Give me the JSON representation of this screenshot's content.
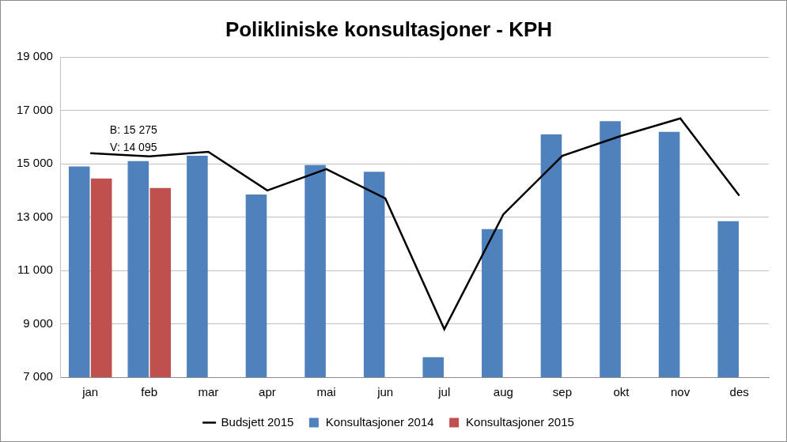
{
  "chart_data": {
    "type": "bar",
    "title": "Polikliniske konsultasjoner - KPH",
    "categories": [
      "jan",
      "feb",
      "mar",
      "apr",
      "mai",
      "jun",
      "jul",
      "aug",
      "sep",
      "okt",
      "nov",
      "des"
    ],
    "series": [
      {
        "name": "Konsultasjoner 2014",
        "type": "bar",
        "color": "#4f81bd",
        "values": [
          14900,
          15100,
          15300,
          13850,
          14950,
          14700,
          7750,
          12550,
          16100,
          16600,
          16200,
          12850
        ]
      },
      {
        "name": "Konsultasjoner 2015",
        "type": "bar",
        "color": "#c0504d",
        "values": [
          14450,
          14095,
          null,
          null,
          null,
          null,
          null,
          null,
          null,
          null,
          null,
          null
        ]
      },
      {
        "name": "Budsjett 2015",
        "type": "line",
        "color": "#000000",
        "marker": "none",
        "line_style": "solid",
        "values": [
          15400,
          15275,
          15450,
          14000,
          14800,
          13700,
          8800,
          13100,
          15300,
          16050,
          16700,
          13800
        ]
      }
    ],
    "annotations": [
      "B: 15 275",
      "V: 14 095"
    ],
    "ylim": [
      7000,
      19000
    ],
    "yticks": [
      {
        "value": 7000,
        "label": "7 000"
      },
      {
        "value": 9000,
        "label": "9 000"
      },
      {
        "value": 11000,
        "label": "11 000"
      },
      {
        "value": 13000,
        "label": "13 000"
      },
      {
        "value": 15000,
        "label": "15 000"
      },
      {
        "value": 17000,
        "label": "17 000"
      },
      {
        "value": 19000,
        "label": "19 000"
      }
    ],
    "grid": true,
    "legend": "bottom"
  }
}
